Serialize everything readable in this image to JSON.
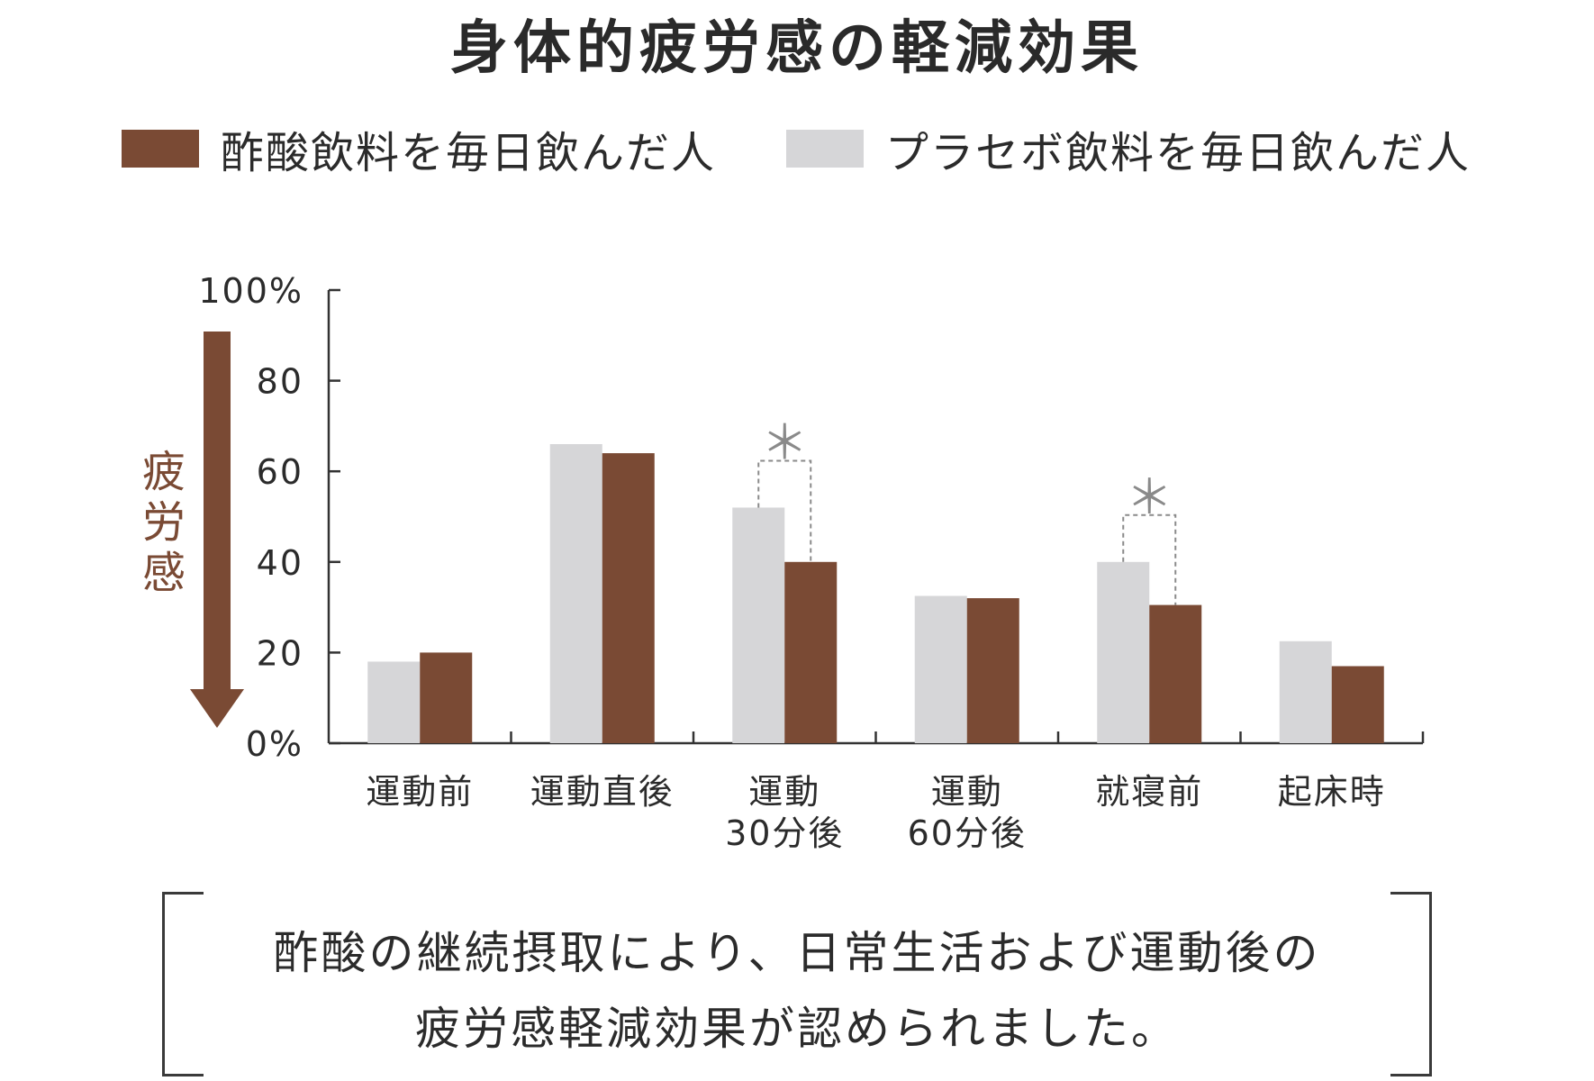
{
  "title": "身体的疲労感の軽減効果",
  "legend": [
    {
      "label": "酢酸飲料を毎日飲んだ人",
      "color": "#7a4a34"
    },
    {
      "label": "プラセボ飲料を毎日飲んだ人",
      "color": "#d6d6d8"
    }
  ],
  "arrow_label": "疲労感",
  "note": {
    "line1": "酢酸の継続摂取により、日常生活および運動後の",
    "line2": "疲労感軽減効果が認められました。"
  },
  "chart_data": {
    "type": "bar",
    "categories": [
      [
        "運動前"
      ],
      [
        "運動直後"
      ],
      [
        "運動",
        "30分後"
      ],
      [
        "運動",
        "60分後"
      ],
      [
        "就寝前"
      ],
      [
        "起床時"
      ]
    ],
    "series": [
      {
        "name": "プラセボ飲料を毎日飲んだ人",
        "color": "#d6d6d8",
        "values": [
          18,
          66,
          52,
          32.5,
          40,
          22.5
        ]
      },
      {
        "name": "酢酸飲料を毎日飲んだ人",
        "color": "#7a4a34",
        "values": [
          20,
          64,
          40,
          32,
          30.5,
          17
        ]
      }
    ],
    "ylim": [
      0,
      100
    ],
    "yticks": [
      {
        "value": 0,
        "label": "0%"
      },
      {
        "value": 20,
        "label": "20"
      },
      {
        "value": 40,
        "label": "40"
      },
      {
        "value": 60,
        "label": "60"
      },
      {
        "value": 80,
        "label": "80"
      },
      {
        "value": 100,
        "label": "100%"
      }
    ],
    "significance": [
      {
        "category_index": 2,
        "label": "＊"
      },
      {
        "category_index": 4,
        "label": "＊"
      }
    ],
    "significance_color": "#8a8a8a"
  }
}
